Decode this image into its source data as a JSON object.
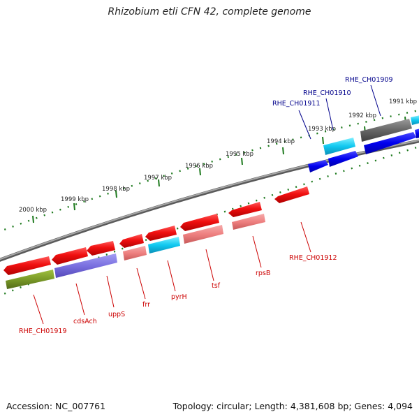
{
  "title": "Rhizobium etli CFN 42, complete genome",
  "footer": {
    "accession": "Accession: NC_007761",
    "summary": "Topology: circular; Length: 4,381,608 bp; Genes: 4,094"
  },
  "colors": {
    "backbone": "#8a8a8a",
    "tick": "#1e7a1e",
    "red_label": "#cc0000",
    "blue_label": "#00008b"
  },
  "ruler_labels": [
    "2000 kbp",
    "1999 kbp",
    "1998 kbp",
    "1997 kbp",
    "1996 kbp",
    "1995 kbp",
    "1994 kbp",
    "1993 kbp",
    "1992 kbp",
    "1991 kbp"
  ],
  "gene_labels_bottom": [
    "RHE_CH01919",
    "cdsAch",
    "uppS",
    "frr",
    "pyrH",
    "tsf",
    "rpsB",
    "RHE_CH01912"
  ],
  "gene_labels_top": [
    "RHE_CH01911",
    "RHE_CH01910",
    "RHE_CH01909"
  ]
}
